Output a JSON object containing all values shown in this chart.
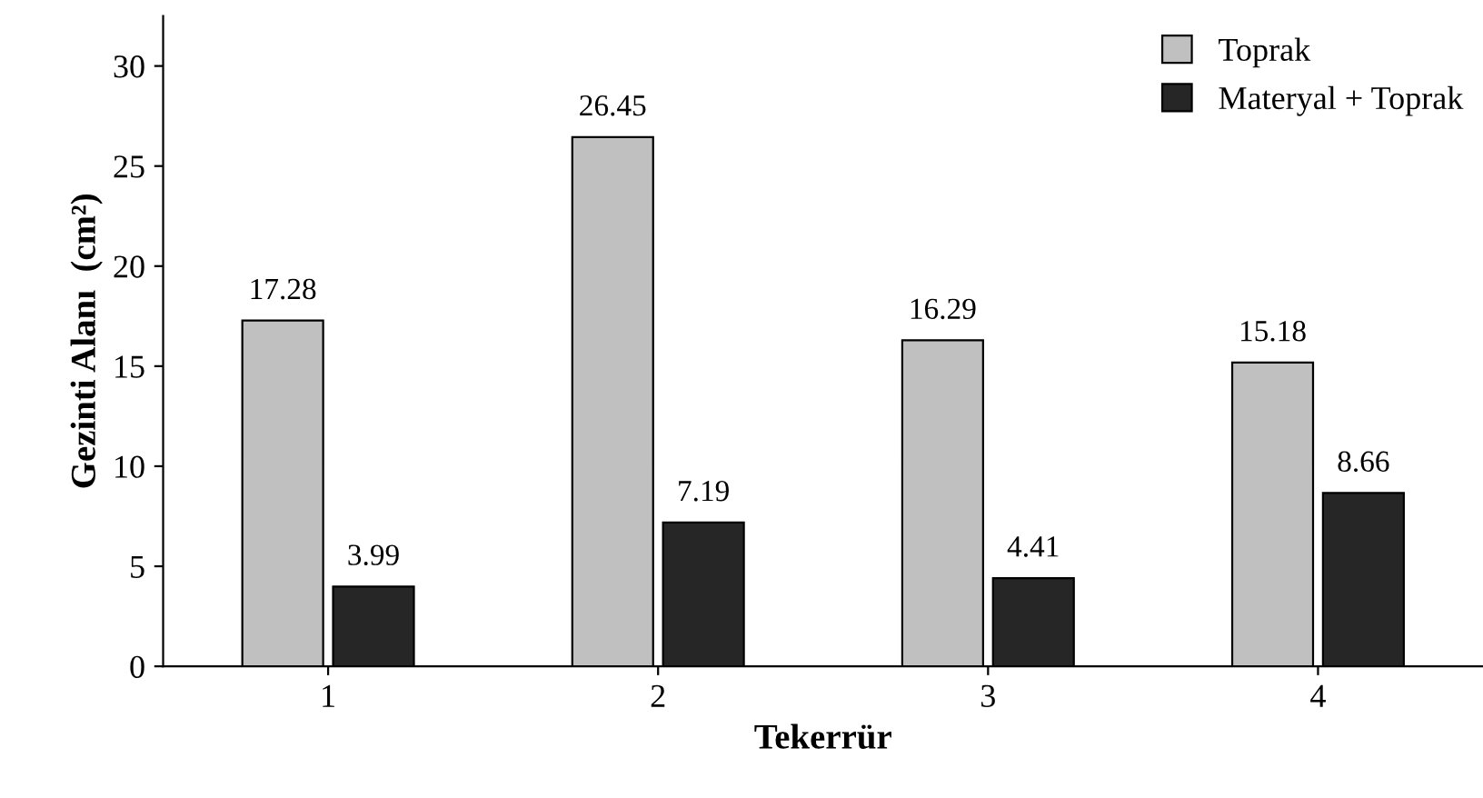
{
  "chart_data": {
    "type": "bar",
    "xlabel": "Tekerrür",
    "ylabel": "Gezinti Alanı  (cm²)",
    "categories": [
      "1",
      "2",
      "3",
      "4"
    ],
    "series": [
      {
        "name": "Toprak",
        "color": "#c0c0c0",
        "values": [
          17.28,
          26.45,
          16.29,
          15.18
        ]
      },
      {
        "name": "Materyal + Toprak",
        "color": "#262626",
        "values": [
          3.99,
          7.19,
          4.41,
          8.66
        ]
      }
    ],
    "ylim": [
      0,
      32.5
    ],
    "yticks": [
      0,
      5,
      10,
      15,
      20,
      25,
      30
    ],
    "grid": false,
    "legend": "top right",
    "data_labels": true
  }
}
